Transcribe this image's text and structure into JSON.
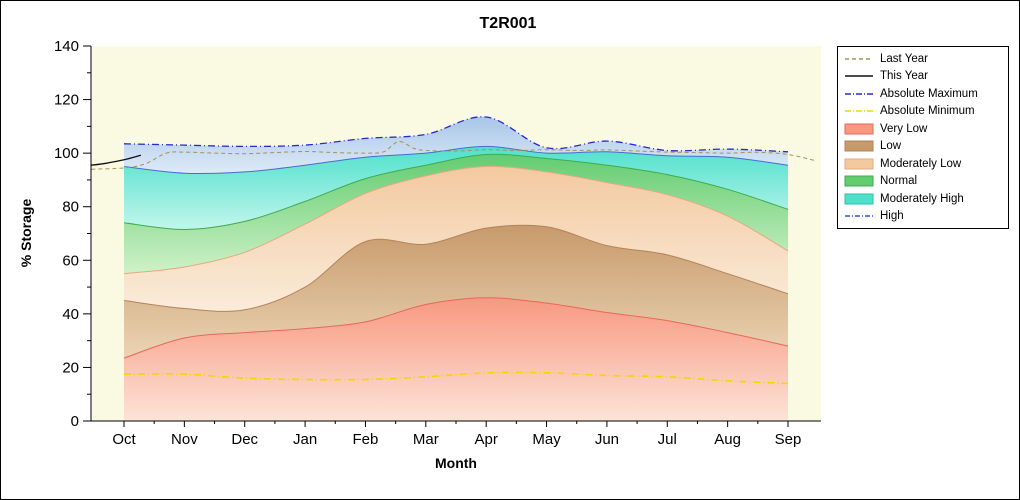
{
  "chart_data": {
    "type": "area",
    "title": "T2R001",
    "xlabel": "Month",
    "ylabel": "% Storage",
    "categories": [
      "Oct",
      "Nov",
      "Dec",
      "Jan",
      "Feb",
      "Mar",
      "Apr",
      "May",
      "Jun",
      "Jul",
      "Aug",
      "Sep"
    ],
    "ylim": [
      0,
      140
    ],
    "ytick_step": 20,
    "background": "#FAFAE2",
    "legend_position": "right",
    "zones": [
      {
        "name": "Very Low",
        "top": [
          23.5,
          31,
          33,
          34.5,
          37,
          43.5,
          46,
          44,
          40.5,
          37.5,
          33,
          28
        ],
        "fill_top": "#F89880",
        "fill_bottom": "#FCE4D8",
        "edge": "#E86858"
      },
      {
        "name": "Low",
        "top": [
          45,
          42,
          41.5,
          50,
          67,
          66,
          72,
          72.5,
          65.5,
          62,
          55,
          47.5
        ],
        "fill_top": "#C79A6B",
        "fill_bottom": "#EBD4B4",
        "edge": "#B5825A"
      },
      {
        "name": "Moderately Low",
        "top": [
          55,
          57.5,
          63,
          73.5,
          85,
          91.5,
          95,
          93,
          89,
          84.5,
          76.5,
          63.5
        ],
        "fill_top": "#F3C9A0",
        "fill_bottom": "#FAECDA",
        "edge": "#E8A880"
      },
      {
        "name": "Normal",
        "top": [
          74,
          71.5,
          74.5,
          82,
          90.5,
          95.5,
          99.5,
          98,
          95.5,
          92,
          86.5,
          79
        ],
        "fill_top": "#63CC70",
        "fill_bottom": "#CFF2C8",
        "edge": "#3CAC50"
      },
      {
        "name": "Moderately High",
        "top": [
          95,
          92.5,
          93,
          95.5,
          98.5,
          100,
          102.5,
          100,
          100.5,
          99,
          98.5,
          95.5
        ],
        "fill_top": "#4FE0CC",
        "fill_bottom": "#C2F6EC",
        "edge": "#4A6AD0"
      },
      {
        "name": "High",
        "top": [
          103.5,
          103,
          102.5,
          103,
          105.5,
          107,
          113.5,
          102,
          104.5,
          101,
          101.5,
          100.5
        ],
        "fill_top": "#A8C6E8",
        "fill_bottom": "#DEEBF8",
        "edge": ""
      }
    ],
    "lines": [
      {
        "name": "Absolute Minimum",
        "values": [
          17.5,
          17.5,
          16,
          15.5,
          15.5,
          16.5,
          18,
          18,
          17,
          16.5,
          15,
          14
        ],
        "color": "#F0D800",
        "dash": "7 3 1 3",
        "width": 1.6
      },
      {
        "name": "Last Year",
        "x": [
          -0.54,
          0,
          0.35,
          0.7,
          1,
          1.5,
          2,
          2.5,
          3,
          3.5,
          4,
          4.3,
          4.55,
          4.8,
          5,
          5.5,
          6,
          6.5,
          7,
          7.5,
          8,
          8.5,
          9,
          9.5,
          10,
          10.5,
          11,
          11.45
        ],
        "values": [
          94,
          94.5,
          96,
          100,
          100.4,
          100,
          99.8,
          100.2,
          100.6,
          100.2,
          100,
          100.5,
          104.3,
          101.8,
          101,
          100.8,
          101.3,
          101,
          101.3,
          101,
          101.2,
          100.8,
          100.4,
          100.2,
          100,
          100.3,
          99.5,
          97.2
        ],
        "color": "#A89058",
        "dash": "4 3",
        "width": 1
      },
      {
        "name": "This Year",
        "x": [
          -0.54,
          -0.3,
          0,
          0.28
        ],
        "values": [
          95.5,
          96.2,
          97.5,
          99.2
        ],
        "color": "#101010",
        "dash": "",
        "width": 1.3
      },
      {
        "name": "Absolute Maximum",
        "values": [
          103.5,
          103,
          102.5,
          103,
          105.5,
          107,
          113.5,
          102,
          104.5,
          101,
          101.5,
          100.5
        ],
        "color": "#2828CC",
        "dash": "7 3 1 3",
        "width": 1.3
      }
    ],
    "legend": [
      {
        "label": "Last Year",
        "sample": "line",
        "color": "#A89058",
        "dash": "4 3"
      },
      {
        "label": "This Year",
        "sample": "line",
        "color": "#101010",
        "dash": ""
      },
      {
        "label": "Absolute Maximum",
        "sample": "line",
        "color": "#2828CC",
        "dash": "6 2 1 2"
      },
      {
        "label": "Absolute Minimum",
        "sample": "line",
        "color": "#F0D800",
        "dash": "6 2 1 2"
      },
      {
        "label": "Very Low",
        "sample": "box",
        "color": "#F89880",
        "border": "#E86858"
      },
      {
        "label": "Low",
        "sample": "box",
        "color": "#C79A6B",
        "border": "#B5825A"
      },
      {
        "label": "Moderately Low",
        "sample": "box",
        "color": "#F3C9A0",
        "border": "#E8A880"
      },
      {
        "label": "Normal",
        "sample": "box",
        "color": "#63CC70",
        "border": "#3CAC50"
      },
      {
        "label": "Moderately High",
        "sample": "box",
        "color": "#4FE0CC",
        "border": "#2BBFA4"
      },
      {
        "label": "High",
        "sample": "line",
        "color": "#2F50D8",
        "dash": "5 2 1 2"
      }
    ]
  }
}
